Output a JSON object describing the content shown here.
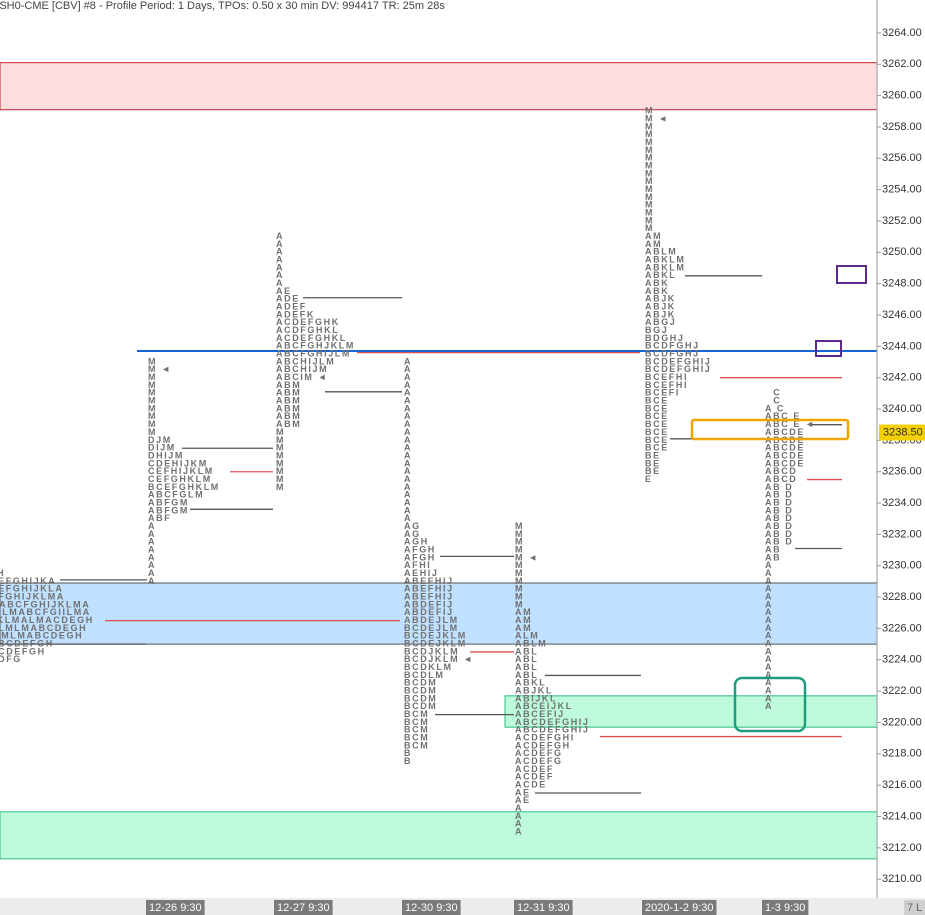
{
  "chart_data": {
    "type": "market-profile",
    "title": "ESH0-CME [CBV]  #8 - Profile Period: 1 Days, TPOs: 0.50 x 30 min   DV: 994417 TR: 25m 28s",
    "tpo_price_size": 0.5,
    "ylim": [
      3208.8,
      3266.1
    ],
    "yticks": [
      {
        "value": 3210,
        "label": "3210.00"
      },
      {
        "value": 3212,
        "label": "3212.00"
      },
      {
        "value": 3214,
        "label": "3214.00"
      },
      {
        "value": 3216,
        "label": "3216.00"
      },
      {
        "value": 3218,
        "label": "3218.00"
      },
      {
        "value": 3220,
        "label": "3220.00"
      },
      {
        "value": 3222,
        "label": "3222.00"
      },
      {
        "value": 3224,
        "label": "3224.00"
      },
      {
        "value": 3226,
        "label": "3226.00"
      },
      {
        "value": 3228,
        "label": "3228.00"
      },
      {
        "value": 3230,
        "label": "3230.00"
      },
      {
        "value": 3232,
        "label": "3232.00"
      },
      {
        "value": 3234,
        "label": "3234.00"
      },
      {
        "value": 3236,
        "label": "3236.00"
      },
      {
        "value": 3238,
        "label": "3238.00"
      },
      {
        "value": 3240,
        "label": "3240.00"
      },
      {
        "value": 3242,
        "label": "3242.00"
      },
      {
        "value": 3244,
        "label": "3244.00"
      },
      {
        "value": 3246,
        "label": "3246.00"
      },
      {
        "value": 3248,
        "label": "3248.00"
      },
      {
        "value": 3250,
        "label": "3250.00"
      },
      {
        "value": 3252,
        "label": "3252.00"
      },
      {
        "value": 3254,
        "label": "3254.00"
      },
      {
        "value": 3256,
        "label": "3256.00"
      },
      {
        "value": 3258,
        "label": "3258.00"
      },
      {
        "value": 3260,
        "label": "3260.00"
      },
      {
        "value": 3262,
        "label": "3262.00"
      },
      {
        "value": 3264,
        "label": "3264.00"
      }
    ],
    "current_price": {
      "value": 3238.5,
      "label": "3238.50",
      "color": "#f5d000"
    },
    "categories": [
      "12-26 9:30",
      "12-27 9:30",
      "12-30 9:30",
      "12-31 9:30",
      "2020-1-2 9:30",
      "1-3 9:30"
    ],
    "corner_label": "7 L",
    "zones": [
      {
        "from": 3259.1,
        "to": 3262.1,
        "color": "#fddde0",
        "edge": "#c0282d"
      },
      {
        "from": 3225.0,
        "to": 3228.9,
        "color": "#bfe0ff",
        "edge": "#555555"
      },
      {
        "from": 3211.3,
        "to": 3214.3,
        "color": "#bdfbdc",
        "edge": "#2ebd7a"
      },
      {
        "from": 3219.7,
        "to": 3221.7,
        "color": "#bdfbdc",
        "edge": "#2ebd7a"
      }
    ],
    "levels": [
      {
        "price": 3229.1,
        "color": "#555555"
      },
      {
        "price": 3226.5,
        "color": "#e05050"
      },
      {
        "price": 3225.0,
        "color": "#555555"
      },
      {
        "price": 3237.5,
        "color": "#555555"
      },
      {
        "price": 3236.0,
        "color": "#e05050"
      },
      {
        "price": 3233.6,
        "color": "#555555"
      },
      {
        "price": 3247.1,
        "color": "#555555"
      },
      {
        "price": 3243.6,
        "color": "#e05050"
      },
      {
        "price": 3241.1,
        "color": "#555555"
      },
      {
        "price": 3230.6,
        "color": "#555555"
      },
      {
        "price": 3224.5,
        "color": "#e05050"
      },
      {
        "price": 3223.0,
        "color": "#555555"
      },
      {
        "price": 3220.5,
        "color": "#555555"
      },
      {
        "price": 3219.1,
        "color": "#e05050"
      },
      {
        "price": 3215.5,
        "color": "#555555"
      },
      {
        "price": 3248.5,
        "color": "#555555"
      },
      {
        "price": 3242.0,
        "color": "#e05050"
      },
      {
        "price": 3238.1,
        "color": "#555555"
      },
      {
        "price": 3235.5,
        "color": "#e05050"
      },
      {
        "price": 3231.1,
        "color": "#555555"
      },
      {
        "price": 3239.0,
        "color": "#555555"
      },
      {
        "price": 3243.7,
        "color": "#1565d8"
      }
    ],
    "profiles": [
      {
        "top": 3229.5,
        "rows": [
          "FH",
          "DEFGHIJKA",
          "DEFGHIJKLA",
          "CFGHIJKLMA",
          "MABCFGHIJKLMA",
          "CILMABCFGIILMA",
          "JKLMALMACDEGH",
          "CLMLMABCDEGH",
          "ILMLMABCDEGH",
          "ABCDEFGH",
          "BCDEFGH",
          "CDFG",
          "G"
        ]
      },
      {
        "top": 3243.0,
        "rows": [
          "M",
          "M ◄",
          "M",
          "M",
          "M",
          "M",
          "M",
          "M",
          "M",
          "M",
          "DJM",
          "DIJM",
          "DHIJM",
          "CDEHIJKM",
          "CEFHIJKLM",
          "CEFGHKLM",
          "BCEFGHKLM",
          "ABCFGLM",
          "ABFGM",
          "ABFGM",
          "ABF",
          "A",
          "A",
          "A",
          "A",
          "A",
          "A",
          "A",
          "A"
        ]
      },
      {
        "top": 3251.0,
        "rows": [
          "A",
          "A",
          "A",
          "A",
          "A",
          "A",
          "A",
          "AE",
          "ADE",
          "ADEF",
          "ADEFK",
          "ACDEFGHK",
          "ACDFGHKL",
          "ACDEFGHKL",
          "ABCFGHJKLM",
          "ABCFGHIJLM",
          "ABCHIJLM",
          "ABCHIJM",
          "ABCIM ◄",
          "ABM",
          "ABM",
          "ABM",
          "ABM",
          "ABM",
          "ABM",
          "M",
          "M",
          "M",
          "M",
          "M",
          "M",
          "M",
          "M"
        ]
      },
      {
        "top": 3243.0,
        "rows": [
          "A",
          "A",
          "A",
          "A",
          "A",
          "A",
          "A",
          "A",
          "A",
          "A",
          "A",
          "A",
          "A",
          "A",
          "A",
          "A",
          "A",
          "A",
          "A",
          "A",
          "A",
          "AG",
          "AG",
          "AGH",
          "AFGH",
          "AFGH",
          "AFHI",
          "AEHIJ",
          "ABEFHIJ",
          "ABEFHIJ",
          "ABEFHIJ",
          "ABDEFIJ",
          "ABDEFIJ",
          "ABDEJLM",
          "BCDEJLM",
          "BCDEJKLM",
          "BCDEJKLM",
          "BCDJKLM",
          "BCDJKLM ◄",
          "BCDKLM",
          "BCDLM",
          "BCDM",
          "BCDM",
          "BCDM",
          "BCDM",
          "BCM",
          "BCM",
          "BCM",
          "BCM",
          "BCM",
          "B",
          "B"
        ]
      },
      {
        "top": 3232.5,
        "rows": [
          "M",
          "M",
          "M",
          "M",
          "M ◄",
          "M",
          "M",
          "M",
          "M",
          "M",
          "M",
          "AM",
          "AM",
          "AM",
          "ALM",
          "ABLM",
          "ABL",
          "ABL",
          "ABL",
          "ABL",
          "ABKL",
          "ABJKL",
          "ABIJKL",
          "ABCEIJKL",
          "ABCEFIJ",
          "ABCDEFGHIJ",
          "ABCDEFGHIJ",
          "ACDEFGHI",
          "ACDEFGH",
          "ACDEFG",
          "ACDEFG",
          "ACDEF",
          "ACDEF",
          "ACDE",
          "AE",
          "AE",
          "A",
          "A",
          "A",
          "A"
        ]
      },
      {
        "top": 3259.0,
        "rows": [
          "M",
          "M ◄",
          "M",
          "M",
          "M",
          "M",
          "M",
          "M",
          "M",
          "M",
          "M",
          "M",
          "M",
          "M",
          "M",
          "M",
          "AM",
          "AM",
          "ABLM",
          "ABKLM",
          "ABKLM",
          "ABKL",
          "ABK",
          "ABK",
          "ABJK",
          "ABJK",
          "ABJK",
          "ABGJ",
          "BGJ",
          "BDGHJ",
          "BCDFGHJ",
          "BCDFGHJ",
          "BCDEFGHIJ",
          "BCDEFGHIJ",
          "BCEFHI",
          "BCEFHI",
          "BCEFI",
          "BCE",
          "BCE",
          "BCE",
          "BCE",
          "BCE",
          "BCE",
          "BCE",
          "BE",
          "BE",
          "BE",
          "E"
        ]
      },
      {
        "top": 3241.0,
        "rows": [
          "  C",
          "  C",
          "A C",
          "ABC E",
          "ABC E ◄",
          "ABCDE",
          "ABCDE",
          "ABCDE",
          "ABCDE",
          "ABCDE",
          "ABCD",
          "ABCD",
          "AB D",
          "AB D",
          "AB D",
          "AB D",
          "AB D",
          "AB D",
          "AB D",
          "AB D",
          "AB",
          "AB",
          "A",
          "A",
          "A",
          "A",
          "A",
          "A",
          "A",
          "A",
          "A",
          "A",
          "A",
          "A",
          "A",
          "A",
          "A",
          "A",
          "A",
          "A",
          "A"
        ]
      }
    ]
  }
}
